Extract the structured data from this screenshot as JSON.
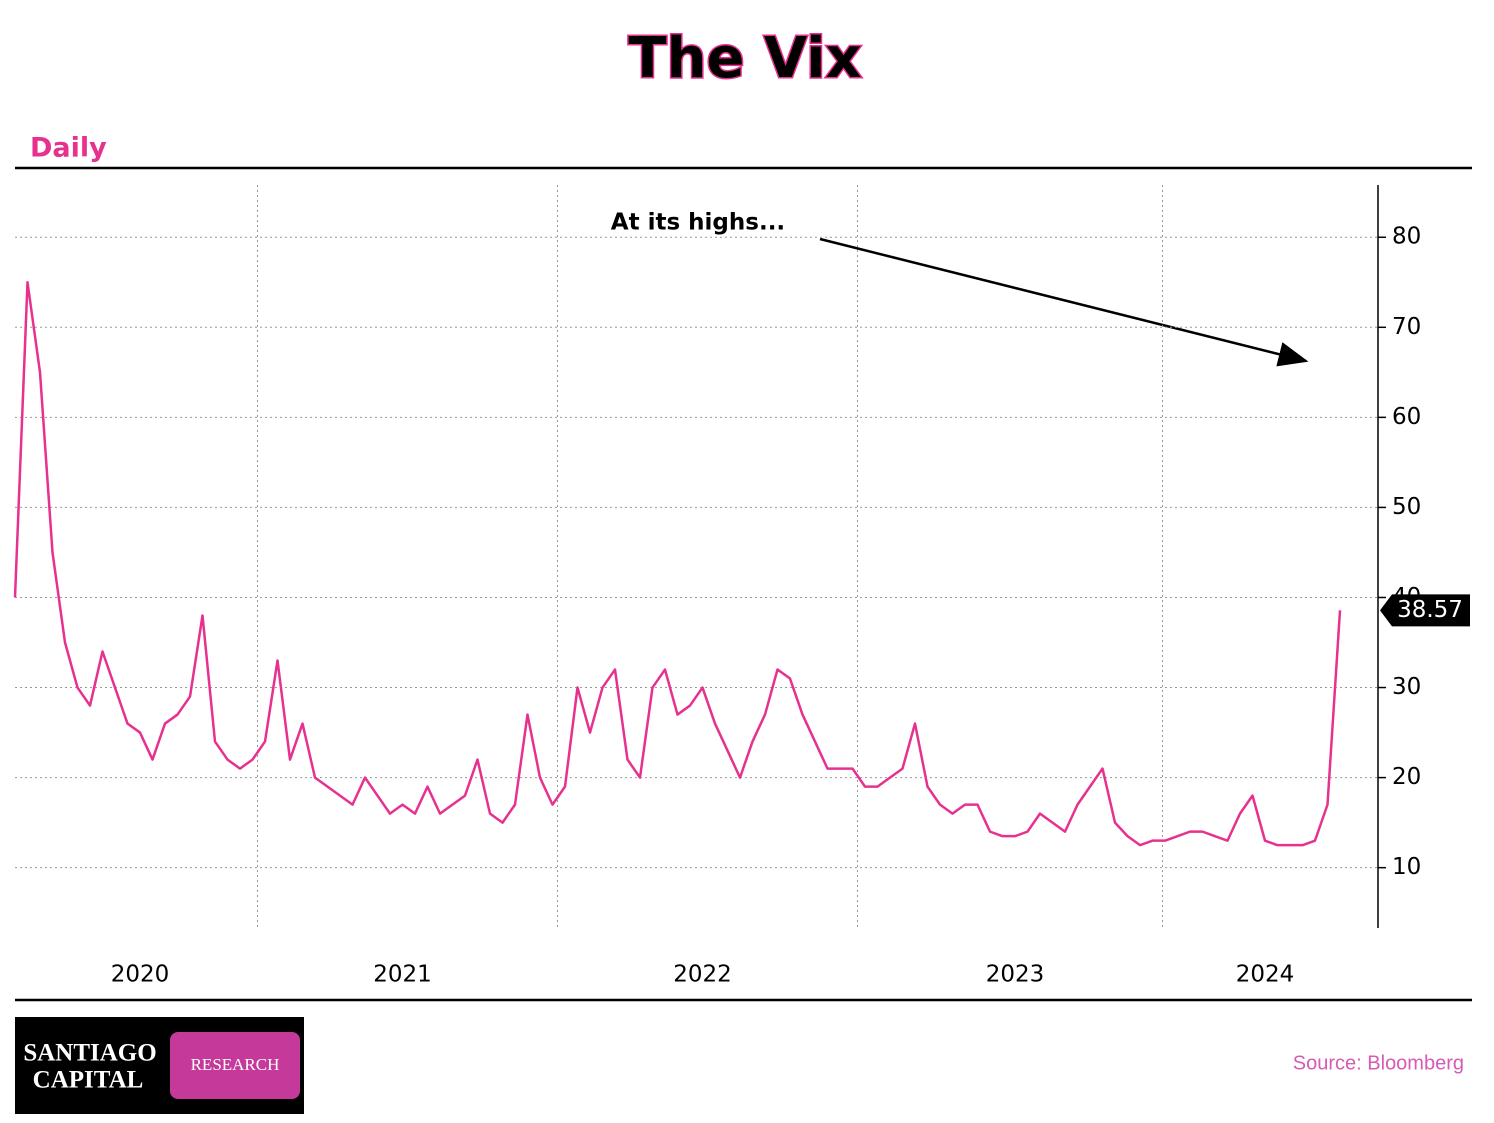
{
  "chart_data": {
    "type": "line",
    "title": "The Vix",
    "subtitle": "Daily",
    "source": "Source: Bloomberg",
    "logo": {
      "name_line1": "SANTIAGO",
      "name_line2": "CAPITAL",
      "badge": "RESEARCH"
    },
    "annotation": "At its highs...",
    "categories": [
      null,
      null,
      null,
      null,
      null,
      null,
      null,
      null,
      null,
      null,
      "2020",
      null,
      null,
      null,
      null,
      null,
      null,
      null,
      null,
      null,
      null,
      null,
      null,
      null,
      null,
      null,
      null,
      null,
      null,
      null,
      null,
      "2021",
      null,
      null,
      null,
      null,
      null,
      null,
      null,
      null,
      null,
      null,
      null,
      null,
      null,
      null,
      null,
      null,
      null,
      null,
      null,
      null,
      null,
      null,
      null,
      "2022",
      null,
      null,
      null,
      null,
      null,
      null,
      null,
      null,
      null,
      null,
      null,
      null,
      null,
      null,
      null,
      null,
      null,
      null,
      null,
      null,
      null,
      null,
      null,
      null,
      "2023",
      null,
      null,
      null,
      null,
      null,
      null,
      null,
      null,
      null,
      null,
      null,
      null,
      null,
      null,
      null,
      null,
      null,
      null,
      null,
      "2024",
      null,
      null,
      null,
      null,
      null,
      null
    ],
    "series": [
      {
        "name": "VIX",
        "color": "#e6318f",
        "values": [
          40,
          75,
          65,
          45,
          35,
          30,
          28,
          34,
          30,
          26,
          25,
          22,
          26,
          27,
          29,
          38,
          24,
          22,
          21,
          22,
          24,
          33,
          22,
          26,
          20,
          19,
          18,
          17,
          20,
          18,
          16,
          17,
          16,
          19,
          16,
          17,
          18,
          22,
          16,
          15,
          17,
          27,
          20,
          17,
          19,
          30,
          25,
          30,
          32,
          22,
          20,
          30,
          32,
          27,
          28,
          30,
          26,
          23,
          20,
          24,
          27,
          32,
          31,
          27,
          24,
          21,
          21,
          21,
          19,
          19,
          20,
          21,
          26,
          19,
          17,
          16,
          17,
          17,
          14,
          13.5,
          13.5,
          14,
          16,
          15,
          14,
          17,
          19,
          21,
          15,
          13.5,
          12.5,
          13,
          13,
          13.5,
          14,
          14,
          13.5,
          13,
          16,
          18,
          13,
          12.5,
          12.5,
          12.5,
          13,
          17,
          38.57
        ]
      }
    ],
    "ylim": [
      3.3,
      85.8
    ],
    "yticks": [
      10,
      20,
      30,
      40,
      50,
      60,
      70,
      80
    ],
    "grid": true
  }
}
